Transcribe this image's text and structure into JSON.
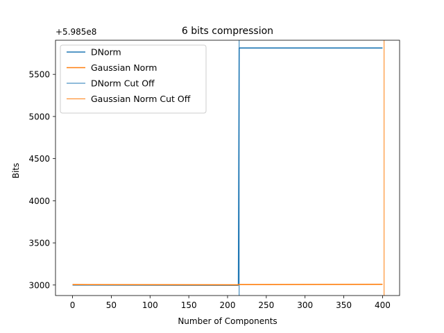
{
  "chart_data": {
    "type": "line",
    "title": "6 bits compression",
    "xlabel": "Number of Components",
    "ylabel": "Bits",
    "offset_text": "+5.985e8",
    "xlim": [
      -22,
      422
    ],
    "ylim": [
      2875,
      5905
    ],
    "x_ticks": [
      0,
      50,
      100,
      150,
      200,
      250,
      300,
      350,
      400
    ],
    "y_ticks": [
      3000,
      3500,
      4000,
      4500,
      5000,
      5500
    ],
    "grid": false,
    "legend_position": "top-left",
    "series": [
      {
        "name": "DNorm",
        "color": "#1f77b4",
        "x": [
          0,
          213,
          214,
          215,
          400
        ],
        "y": [
          3000,
          2997,
          3000,
          5813,
          5813
        ]
      },
      {
        "name": "Gaussian Norm",
        "color": "#ff7f0e",
        "x": [
          0,
          213,
          214,
          400
        ],
        "y": [
          3005,
          3002,
          3005,
          3008
        ]
      }
    ],
    "vlines": [
      {
        "name": "DNorm Cut Off",
        "x": 215,
        "color": "#1f77b4"
      },
      {
        "name": "Gaussian Norm Cut Off",
        "x": 402,
        "color": "#ff7f0e"
      }
    ]
  }
}
